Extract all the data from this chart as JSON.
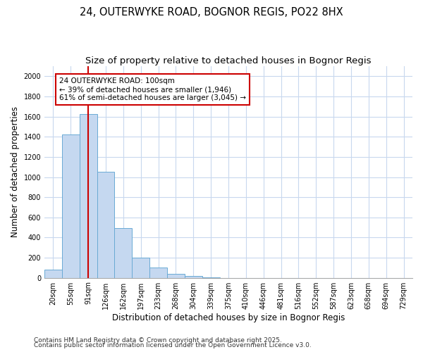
{
  "title_line1": "24, OUTERWYKE ROAD, BOGNOR REGIS, PO22 8HX",
  "title_line2": "Size of property relative to detached houses in Bognor Regis",
  "xlabel": "Distribution of detached houses by size in Bognor Regis",
  "ylabel": "Number of detached properties",
  "categories": [
    "20sqm",
    "55sqm",
    "91sqm",
    "126sqm",
    "162sqm",
    "197sqm",
    "233sqm",
    "268sqm",
    "304sqm",
    "339sqm",
    "375sqm",
    "410sqm",
    "446sqm",
    "481sqm",
    "516sqm",
    "552sqm",
    "587sqm",
    "623sqm",
    "658sqm",
    "694sqm",
    "729sqm"
  ],
  "values": [
    80,
    1420,
    1625,
    1050,
    490,
    200,
    105,
    40,
    20,
    5,
    0,
    0,
    0,
    0,
    0,
    0,
    0,
    0,
    0,
    0,
    0
  ],
  "bar_color": "#c5d8f0",
  "bar_edge_color": "#6aaad4",
  "vline_x": 2,
  "vline_color": "#cc0000",
  "annotation_line1": "24 OUTERWYKE ROAD: 100sqm",
  "annotation_line2": "← 39% of detached houses are smaller (1,946)",
  "annotation_line3": "61% of semi-detached houses are larger (3,045) →",
  "annotation_box_color": "#cc0000",
  "annotation_fill_color": "#ffffff",
  "ylim": [
    0,
    2100
  ],
  "yticks": [
    0,
    200,
    400,
    600,
    800,
    1000,
    1200,
    1400,
    1600,
    1800,
    2000
  ],
  "grid_color": "#c8d8ee",
  "background_color": "#ffffff",
  "plot_bg_color": "#ffffff",
  "footer_line1": "Contains HM Land Registry data © Crown copyright and database right 2025.",
  "footer_line2": "Contains public sector information licensed under the Open Government Licence v3.0.",
  "title_fontsize": 10.5,
  "subtitle_fontsize": 9.5,
  "axis_label_fontsize": 8.5,
  "tick_fontsize": 7,
  "footer_fontsize": 6.5,
  "annotation_fontsize": 7.5
}
